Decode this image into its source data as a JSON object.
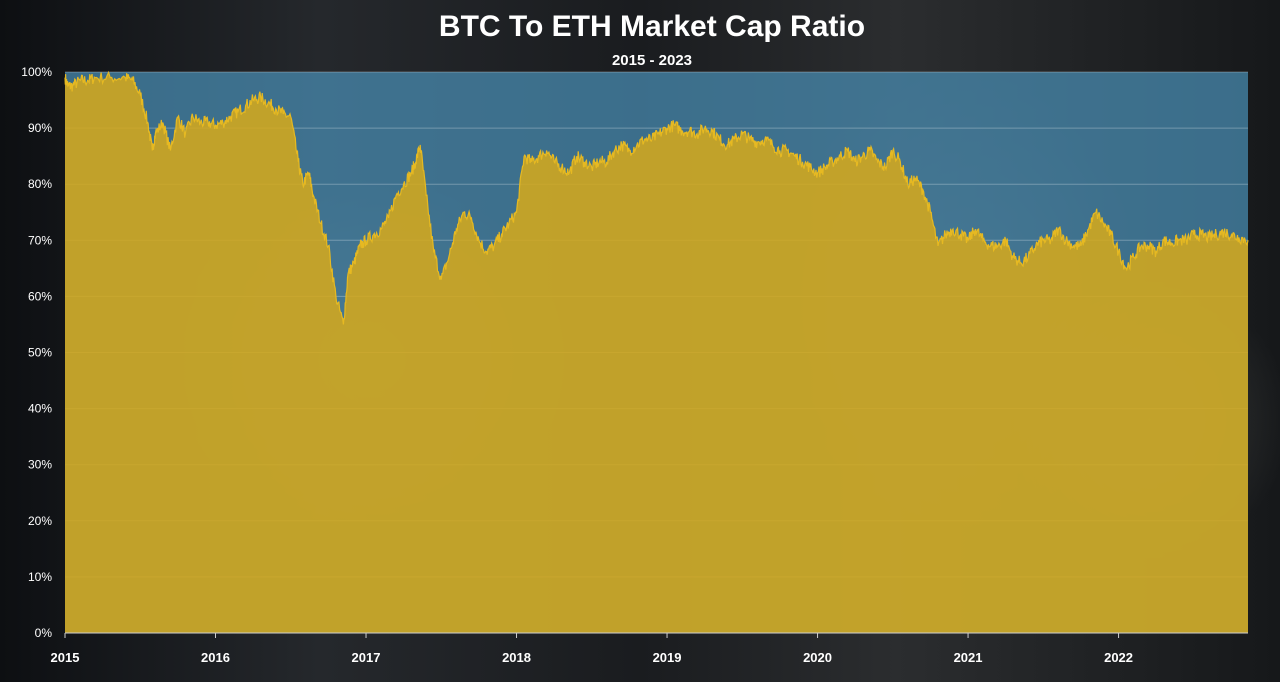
{
  "chart_data": {
    "type": "area",
    "title": "BTC To ETH Market Cap Ratio",
    "subtitle": "2015 - 2023",
    "xlabel": "",
    "ylabel": "",
    "xlim": [
      2015,
      2022.86
    ],
    "ylim": [
      0,
      100
    ],
    "y_ticks": [
      "0%",
      "10%",
      "20%",
      "30%",
      "40%",
      "50%",
      "60%",
      "70%",
      "80%",
      "90%",
      "100%"
    ],
    "x_ticks": [
      "2015",
      "2016",
      "2017",
      "2018",
      "2019",
      "2020",
      "2021",
      "2022"
    ],
    "grid": true,
    "legend": "none",
    "colors": {
      "fill": "#d4a91c",
      "line": "#e6b922",
      "remainder": "#4a8fb5"
    },
    "series": [
      {
        "x": [
          2015.0,
          2015.02,
          2015.05,
          2015.1,
          2015.15,
          2015.2,
          2015.3,
          2015.4,
          2015.45,
          2015.5,
          2015.55,
          2015.58,
          2015.6,
          2015.65,
          2015.7,
          2015.75,
          2015.8,
          2015.85,
          2015.9,
          2015.95,
          2016.0,
          2016.05,
          2016.1,
          2016.15,
          2016.2,
          2016.25,
          2016.3,
          2016.35,
          2016.4,
          2016.45,
          2016.5,
          2016.55,
          2016.58,
          2016.62,
          2016.65,
          2016.7,
          2016.75,
          2016.8,
          2016.85,
          2016.88,
          2016.92,
          2016.96,
          2017.0,
          2017.05,
          2017.1,
          2017.15,
          2017.2,
          2017.25,
          2017.3,
          2017.33,
          2017.36,
          2017.4,
          2017.45,
          2017.5,
          2017.55,
          2017.6,
          2017.65,
          2017.7,
          2017.75,
          2017.8,
          2017.85,
          2017.9,
          2017.95,
          2018.0,
          2018.05,
          2018.1,
          2018.15,
          2018.2,
          2018.25,
          2018.3,
          2018.35,
          2018.4,
          2018.45,
          2018.5,
          2018.55,
          2018.6,
          2018.65,
          2018.7,
          2018.75,
          2018.8,
          2018.85,
          2018.9,
          2018.95,
          2019.0,
          2019.05,
          2019.1,
          2019.15,
          2019.2,
          2019.25,
          2019.3,
          2019.35,
          2019.4,
          2019.45,
          2019.5,
          2019.55,
          2019.6,
          2019.65,
          2019.7,
          2019.75,
          2019.8,
          2019.85,
          2019.9,
          2019.95,
          2020.0,
          2020.05,
          2020.1,
          2020.15,
          2020.2,
          2020.25,
          2020.3,
          2020.35,
          2020.4,
          2020.45,
          2020.5,
          2020.55,
          2020.6,
          2020.65,
          2020.7,
          2020.75,
          2020.8,
          2020.85,
          2020.9,
          2020.95,
          2021.0,
          2021.05,
          2021.1,
          2021.15,
          2021.2,
          2021.25,
          2021.3,
          2021.35,
          2021.4,
          2021.45,
          2021.5,
          2021.55,
          2021.6,
          2021.65,
          2021.7,
          2021.75,
          2021.8,
          2021.85,
          2021.9,
          2021.95,
          2022.0,
          2022.05,
          2022.1,
          2022.15,
          2022.2,
          2022.25,
          2022.3,
          2022.35,
          2022.4,
          2022.45,
          2022.5,
          2022.55,
          2022.6,
          2022.65,
          2022.7,
          2022.75,
          2022.8,
          2022.86
        ],
        "values": [
          99,
          97.5,
          97.5,
          98.5,
          98.5,
          99,
          99,
          99,
          98.5,
          96,
          91,
          86,
          89,
          91,
          86,
          92,
          89,
          92,
          91,
          91,
          90.5,
          91,
          92,
          93,
          94,
          95,
          95.5,
          94.5,
          93.5,
          92.5,
          92,
          84,
          80,
          82,
          78,
          73,
          69,
          60,
          55,
          64,
          66,
          69,
          70,
          71,
          72,
          74,
          78,
          80,
          82,
          84,
          87,
          78,
          68,
          63,
          67,
          72,
          75,
          74,
          70,
          68,
          69,
          71,
          73,
          75,
          85,
          84,
          85,
          86,
          84,
          83,
          82,
          85,
          84,
          83,
          84,
          84,
          86,
          87,
          86,
          87,
          88,
          88,
          89,
          90,
          90.5,
          89.5,
          89.5,
          89,
          90,
          89.5,
          88,
          87,
          88,
          89,
          88,
          87.5,
          88,
          87,
          86,
          86,
          85,
          84,
          83,
          82,
          83,
          84,
          85,
          86,
          84,
          85,
          86,
          84,
          83,
          86,
          84,
          80,
          81,
          79,
          75,
          69,
          71,
          72,
          71,
          70,
          72,
          70,
          69,
          69,
          70,
          67,
          66,
          67,
          69,
          70,
          70,
          72,
          70,
          69,
          69,
          72,
          75,
          73,
          71,
          68,
          65,
          67,
          69,
          69,
          68,
          70,
          69.5,
          70,
          70,
          71,
          71,
          70.5,
          71,
          71.5,
          71,
          70.5,
          70
        ]
      }
    ]
  }
}
